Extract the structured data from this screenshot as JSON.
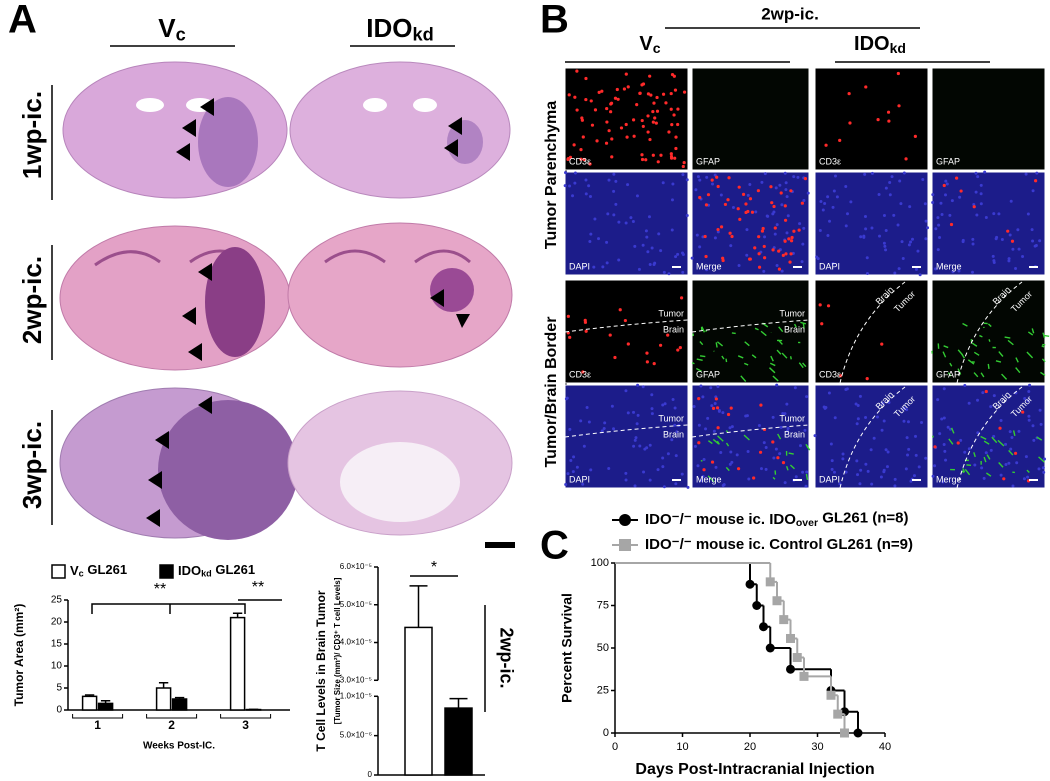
{
  "panel_a": {
    "label": "A",
    "columns": [
      [
        "V",
        "c"
      ],
      [
        "IDO",
        "kd"
      ]
    ],
    "rows": [
      "1wp-ic.",
      "2wp-ic.",
      "3wp-ic."
    ]
  },
  "panel_b": {
    "label": "B",
    "title": "2wp-ic.",
    "columns": [
      [
        "V",
        "c"
      ],
      [
        "IDO",
        "kd"
      ]
    ],
    "rows": [
      "Tumor Parenchyma",
      "Tumor/Brain Border"
    ],
    "channels": [
      "CD3ε",
      "GFAP",
      "DAPI",
      "Merge"
    ],
    "regions": [
      "Tumor",
      "Brain"
    ]
  },
  "panel_c": {
    "label": "C"
  },
  "chart_data": [
    {
      "type": "bar",
      "y_label": "Tumor Area (mm²)",
      "x_label": "Weeks Post-IC.",
      "categories": [
        "1",
        "2",
        "3"
      ],
      "series": [
        {
          "name": [
            "V",
            "c",
            " GL261"
          ],
          "color": "#ffffff",
          "values": [
            3.1,
            5.0,
            21.0
          ],
          "errors": [
            0.3,
            1.2,
            1.0
          ]
        },
        {
          "name": [
            "IDO",
            "kd",
            " GL261"
          ],
          "color": "#000000",
          "values": [
            1.5,
            2.5,
            0.1
          ],
          "errors": [
            0.6,
            0.3,
            0.05
          ]
        }
      ],
      "ylim": [
        0,
        25
      ],
      "yticks": [
        0,
        5,
        10,
        15,
        20,
        25
      ],
      "annotations": [
        "**",
        "**"
      ]
    },
    {
      "type": "bar",
      "y_label": "T Cell Levels in Brain Tumor",
      "y_sublabel": "[Tumor Size (mm²)/ CD3⁺ T cell Levels]",
      "side_label": "2wp-ic.",
      "categories": [
        null,
        null
      ],
      "values": [
        4.4e-05,
        8.5e-06
      ],
      "errors": [
        1.1e-05,
        1.2e-06
      ],
      "colors": [
        "#ffffff",
        "#000000"
      ],
      "ylim": [
        0,
        6e-05
      ],
      "axis_break": [
        1e-05,
        3e-05
      ],
      "yticks": [
        0,
        {
          "value": 5e-06,
          "label": "5.0×10⁻⁶"
        },
        {
          "value": 1e-05,
          "label": "1.0×10⁻⁵"
        },
        {
          "value": 3e-05,
          "label": "3.0×10⁻⁵"
        },
        {
          "value": 4e-05,
          "label": "4.0×10⁻⁵"
        },
        {
          "value": 5e-05,
          "label": "5.0×10⁻⁵"
        },
        {
          "value": 6e-05,
          "label": "6.0×10⁻⁵"
        }
      ],
      "annotations": [
        "*"
      ]
    },
    {
      "type": "step",
      "x_label": "Days Post-Intracranial Injection",
      "y_label": "Percent Survival",
      "series": [
        {
          "name": [
            "IDO⁻/⁻ mouse ic. IDO",
            "over",
            " GL261  (n=8)"
          ],
          "color": "#000000",
          "marker": "circle",
          "x": [
            0,
            20,
            21,
            22,
            23,
            26,
            32,
            34,
            36
          ],
          "values": [
            100,
            87.5,
            75,
            62.5,
            50,
            37.5,
            25,
            12.5,
            0
          ]
        },
        {
          "name": [
            "IDO⁻/⁻ mouse ic. Control GL261  (n=9)"
          ],
          "color": "#a6a6a6",
          "marker": "square",
          "x": [
            0,
            23,
            24,
            25,
            26,
            27,
            28,
            32,
            33,
            34
          ],
          "values": [
            100,
            88.9,
            77.8,
            66.7,
            55.6,
            44.4,
            33.3,
            22.2,
            11.1,
            0
          ]
        }
      ],
      "xlim": [
        0,
        40
      ],
      "ylim": [
        0,
        100
      ],
      "xticks": [
        0,
        10,
        20,
        30,
        40
      ],
      "yticks": [
        0,
        25,
        50,
        75,
        100
      ]
    }
  ]
}
